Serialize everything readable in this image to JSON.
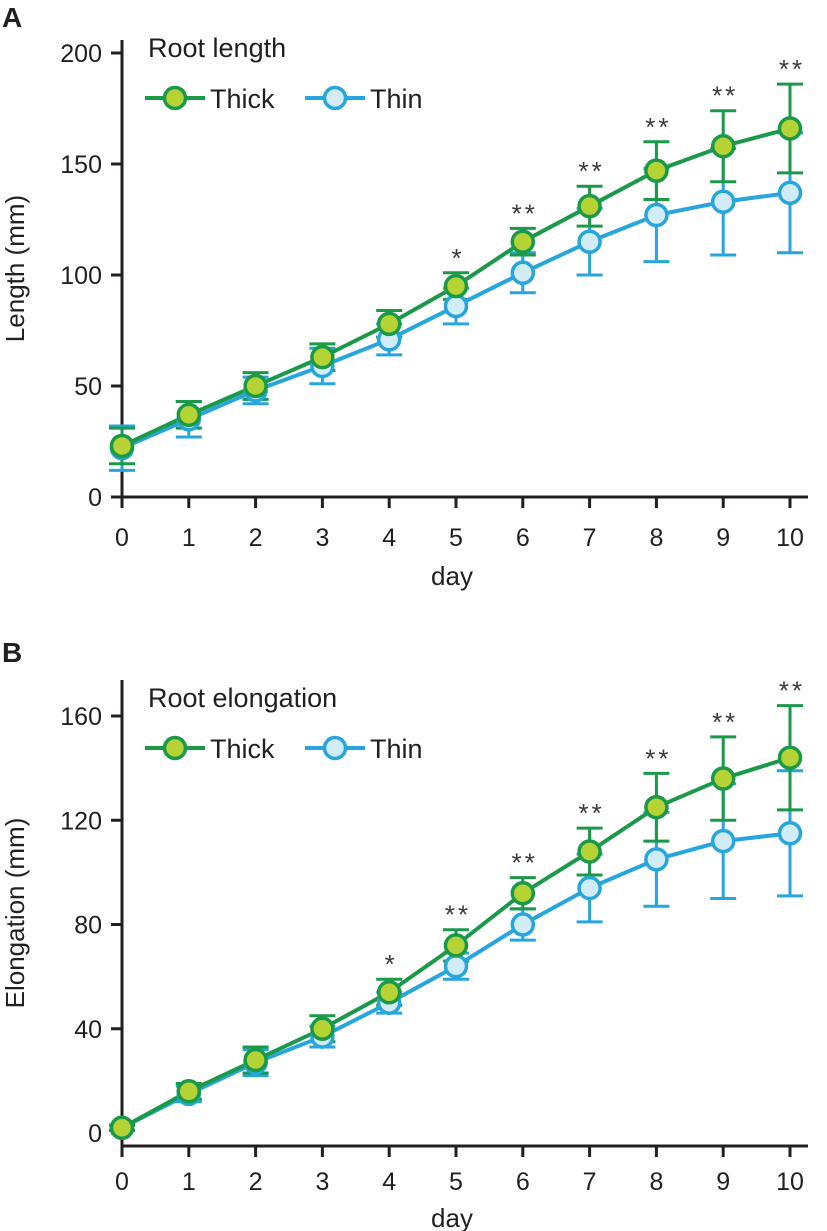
{
  "chart_data": [
    {
      "panel": "A",
      "type": "line",
      "title": "Root length",
      "xlabel": "day",
      "ylabel": "Length (mm)",
      "x": [
        0,
        1,
        2,
        3,
        4,
        5,
        6,
        7,
        8,
        9,
        10
      ],
      "xticks": [
        "0",
        "1",
        "2",
        "3",
        "4",
        "5",
        "6",
        "7",
        "8",
        "9",
        "10"
      ],
      "ylim": [
        0,
        200
      ],
      "yticks": [
        0,
        50,
        100,
        150,
        200
      ],
      "legend": [
        "Thick",
        "Thin"
      ],
      "legend_position": "top-left",
      "series": [
        {
          "name": "Thick",
          "line_color": "#1a9a48",
          "fill_color": "#b5d334",
          "values": [
            23,
            37,
            50,
            63,
            78,
            95,
            115,
            131,
            147,
            158,
            166
          ],
          "error": [
            8,
            6,
            6,
            6,
            6,
            6,
            6,
            9,
            13,
            16,
            20
          ]
        },
        {
          "name": "Thin",
          "line_color": "#27a6dd",
          "fill_color": "#d2ecf6",
          "values": [
            22,
            35,
            48,
            59,
            71,
            86,
            101,
            115,
            127,
            133,
            137
          ],
          "error": [
            10,
            8,
            6,
            8,
            7,
            8,
            9,
            15,
            21,
            24,
            27
          ]
        }
      ],
      "significance": [
        "",
        "",
        "",
        "",
        "",
        "*",
        "**",
        "**",
        "**",
        "**",
        "**"
      ]
    },
    {
      "panel": "B",
      "type": "line",
      "title": "Root elongation",
      "xlabel": "day",
      "ylabel": "Elongation (mm)",
      "x": [
        0,
        1,
        2,
        3,
        4,
        5,
        6,
        7,
        8,
        9,
        10
      ],
      "xticks": [
        "0",
        "1",
        "2",
        "3",
        "4",
        "5",
        "6",
        "7",
        "8",
        "9",
        "10"
      ],
      "ylim": [
        0,
        175
      ],
      "yticks": [
        0,
        40,
        80,
        120,
        160
      ],
      "legend": [
        "Thick",
        "Thin"
      ],
      "legend_position": "top-left",
      "series": [
        {
          "name": "Thick",
          "line_color": "#1a9a48",
          "fill_color": "#b5d334",
          "values": [
            2,
            16,
            28,
            40,
            54,
            72,
            92,
            108,
            125,
            136,
            144
          ],
          "error": [
            1,
            3,
            5,
            5,
            5,
            6,
            6,
            9,
            13,
            16,
            20
          ]
        },
        {
          "name": "Thin",
          "line_color": "#27a6dd",
          "fill_color": "#d2ecf6",
          "values": [
            2,
            15,
            27,
            37,
            50,
            64,
            80,
            94,
            105,
            112,
            115
          ],
          "error": [
            1,
            3,
            5,
            4,
            4,
            5,
            6,
            13,
            18,
            22,
            24
          ]
        }
      ],
      "significance": [
        "",
        "",
        "",
        "",
        "*",
        "**",
        "**",
        "**",
        "**",
        "**",
        "**"
      ]
    }
  ]
}
